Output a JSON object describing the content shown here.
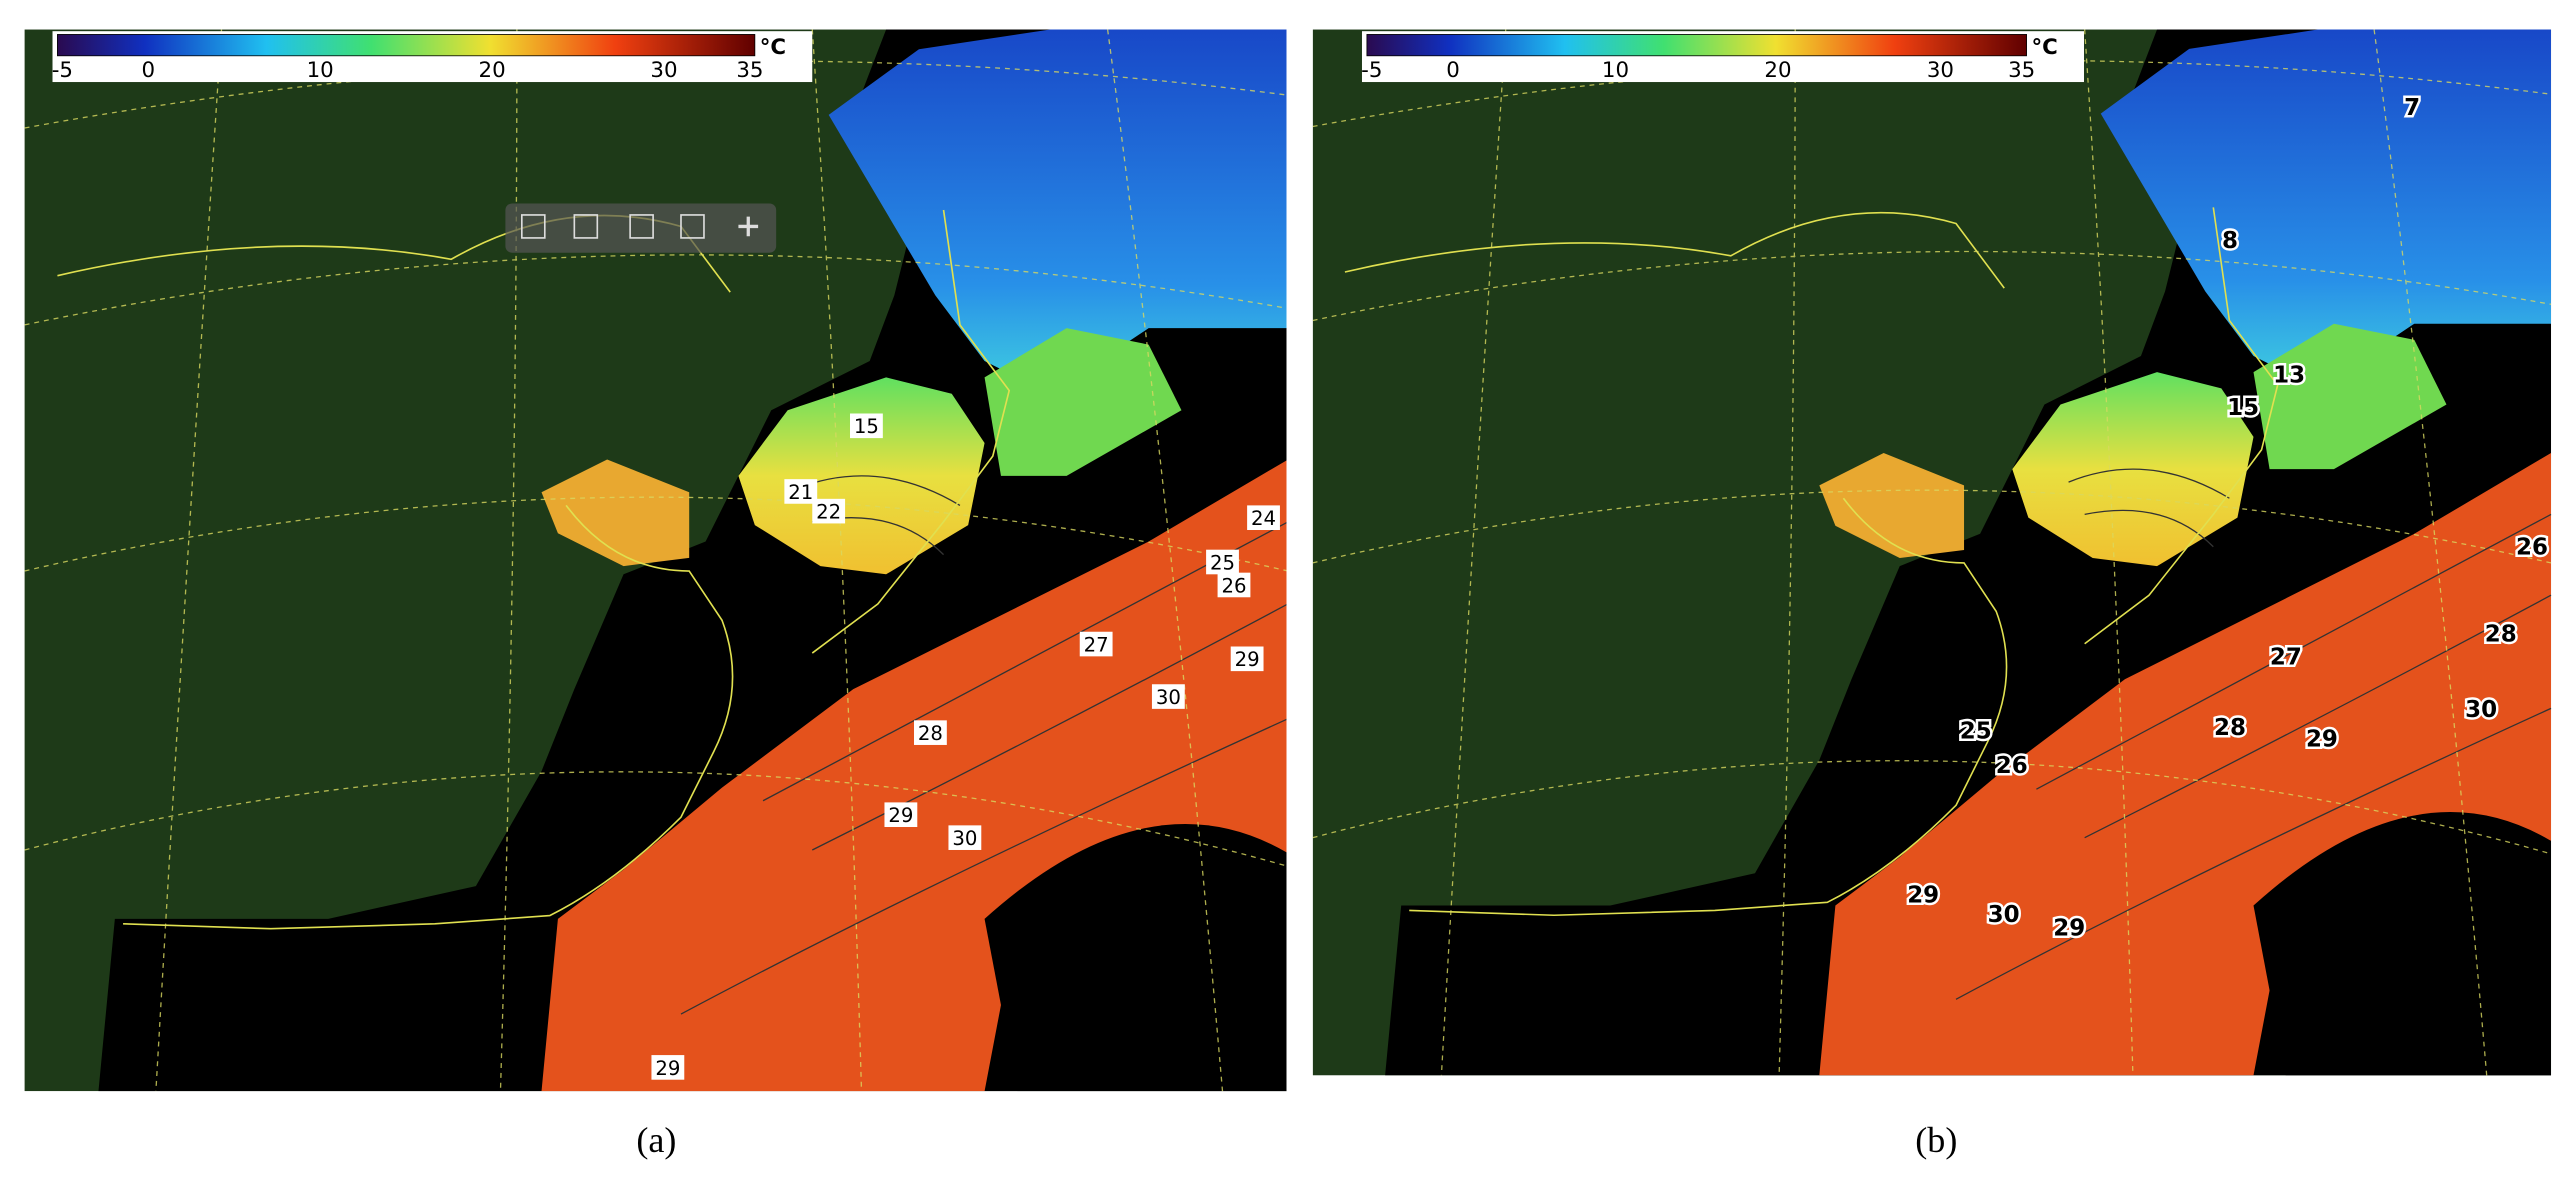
{
  "panels": [
    {
      "colorbar": {
        "unit": "°C",
        "ticks": [
          "-5",
          "0",
          "10",
          "20",
          "30",
          "35"
        ]
      },
      "contour_labels": [
        "15",
        "21",
        "22",
        "24",
        "25",
        "26",
        "27",
        "29",
        "30",
        "28",
        "29",
        "30",
        "29"
      ],
      "caption": "(a)"
    },
    {
      "colorbar": {
        "unit": "°C",
        "ticks": [
          "-5",
          "0",
          "10",
          "20",
          "30",
          "35"
        ]
      },
      "contour_labels": [
        "7",
        "8",
        "13",
        "15",
        "26",
        "28",
        "27",
        "30",
        "25",
        "28",
        "29",
        "26",
        "29",
        "30",
        "29"
      ],
      "caption": "(b)"
    }
  ]
}
